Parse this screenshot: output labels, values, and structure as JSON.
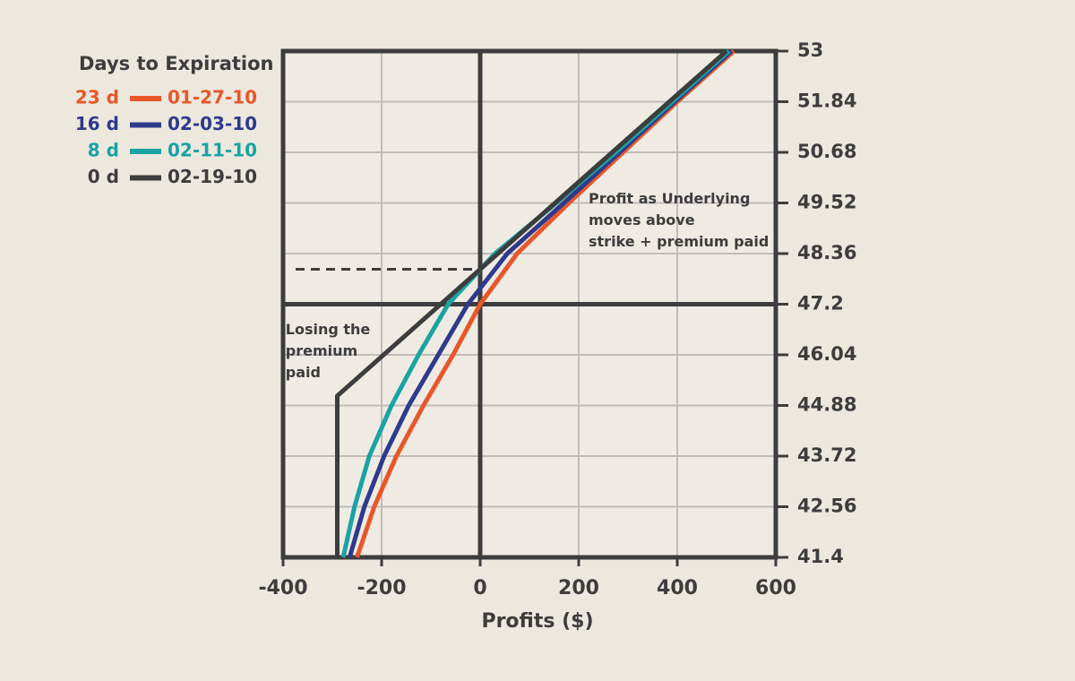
{
  "chart_data": {
    "type": "line",
    "legend_title": "Days to Expiration",
    "x_label": "Profits ($)",
    "xlim": [
      -400,
      600
    ],
    "xticks": [
      -400,
      -200,
      0,
      200,
      400,
      600
    ],
    "ylim": [
      41.4,
      53
    ],
    "yticks": [
      41.4,
      42.56,
      43.72,
      44.88,
      46.04,
      47.2,
      48.36,
      49.52,
      50.68,
      51.84,
      53
    ],
    "grid": true,
    "legend": "upper left",
    "y_axis_side": "right",
    "reference_lines": {
      "x": 0,
      "y": 47.2,
      "dashed_y": 48
    },
    "annotations": [
      {
        "lines": [
          "Losing the",
          "premium",
          "paid"
        ],
        "x": -395,
        "y": 46.6
      },
      {
        "lines": [
          "Profit as Underlying",
          "moves above",
          "strike + premium paid"
        ],
        "x": 220,
        "y": 49.6
      }
    ],
    "series": [
      {
        "name": "23 d",
        "date": "01-27-10",
        "color": "#e8572a",
        "x": [
          -250,
          -215,
          -170,
          -115,
          -55,
          0,
          75,
          180,
          290,
          400,
          515
        ],
        "values": [
          41.4,
          42.56,
          43.72,
          44.88,
          46.04,
          47.2,
          48.36,
          49.52,
          50.68,
          51.84,
          53
        ]
      },
      {
        "name": "16 d",
        "date": "02-03-10",
        "color": "#2e3a8c",
        "x": [
          -265,
          -235,
          -195,
          -145,
          -85,
          -25,
          55,
          170,
          283,
          395,
          510
        ],
        "values": [
          41.4,
          42.56,
          43.72,
          44.88,
          46.04,
          47.2,
          48.36,
          49.52,
          50.68,
          51.84,
          53
        ]
      },
      {
        "name": "8 d",
        "date": "02-11-10",
        "color": "#1aa3a3",
        "x": [
          -278,
          -255,
          -225,
          -180,
          -125,
          -65,
          30,
          155,
          275,
          390,
          505
        ],
        "values": [
          41.4,
          42.56,
          43.72,
          44.88,
          46.04,
          47.2,
          48.36,
          49.52,
          50.68,
          51.84,
          53
        ]
      },
      {
        "name": "0 d",
        "date": "02-19-10",
        "color": "#3d3d3d",
        "x": [
          -290,
          -290,
          500
        ],
        "values": [
          41.4,
          45.1,
          53
        ]
      }
    ]
  }
}
